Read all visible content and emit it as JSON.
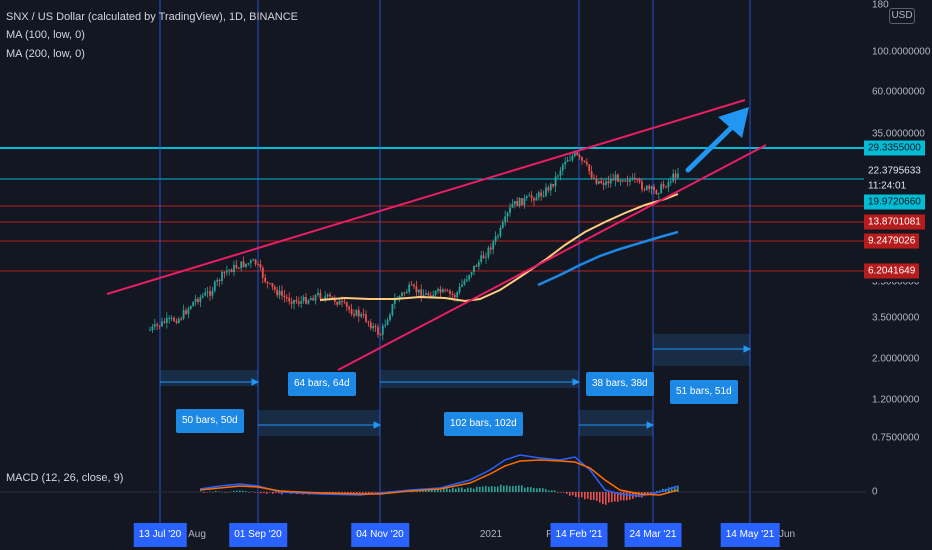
{
  "header": {
    "title": "SNX / US Dollar (calculated by TradingView), 1D, BINANCE",
    "indicator_1": "MA (100, low, 0)",
    "indicator_2": "MA (200, low, 0)",
    "macd": "MACD (12, 26, close, 9)"
  },
  "axis": {
    "currency": "USD",
    "top_label": "180",
    "labels": [
      "100.0000000",
      "60.0000000",
      "35.0000000",
      "3.5000000",
      "2.0000000",
      "1.2000000",
      "0.7500000",
      "0"
    ],
    "partial_label": "3.5000000",
    "price_tags": {
      "cyan_price": "29.3355000",
      "last_price": "22.3795633",
      "countdown": "11:24:01",
      "level_1": "19.9720660",
      "level_2": "13.8701081",
      "level_3": "9.2479026",
      "level_4": "6.2041649"
    }
  },
  "time_axis": {
    "dates": [
      "13 Jul '20",
      "01 Sep '20",
      "04 Nov '20",
      "14 Feb '21",
      "24 Mar '21",
      "14 May '21"
    ],
    "labels": [
      "Aug",
      "2021",
      "Fe",
      "Jun"
    ]
  },
  "bar_ranges": [
    "50 bars, 50d",
    "64 bars, 64d",
    "102 bars, 102d",
    "38 bars, 38d",
    "51 bars, 51d"
  ],
  "colors": {
    "background": "#131722",
    "vline": "#2962ff",
    "trend": "#e91e63",
    "cyan": "#00bcd4",
    "level": "#b71c1c",
    "ma100": "#ffcc80",
    "ma200": "#1e88e5",
    "up": "#26a69a",
    "down": "#ef5350"
  }
}
